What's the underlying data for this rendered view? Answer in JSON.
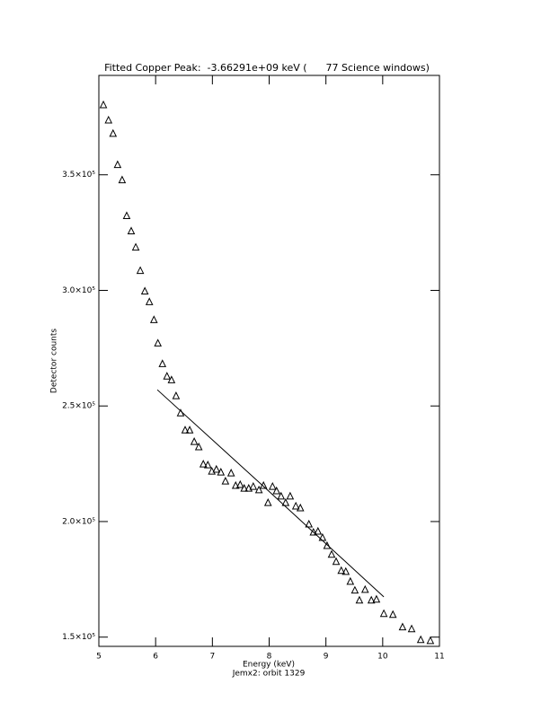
{
  "chart_data": {
    "type": "scatter",
    "title": "Fitted Copper Peak:  -3.66291e+09 keV (      77 Science windows)",
    "x_label": "Energy (keV)",
    "y_label": "Detector counts",
    "footnote": "Jemx2: orbit 1329",
    "xlim": [
      5,
      11
    ],
    "xticks": [
      5,
      6,
      7,
      8,
      9,
      10,
      11
    ],
    "ylim": [
      146000,
      393000
    ],
    "yticks": [
      {
        "value": 150000,
        "label": "1.5×10⁵"
      },
      {
        "value": 200000,
        "label": "2.0×10⁵"
      },
      {
        "value": 250000,
        "label": "2.5×10⁵"
      },
      {
        "value": 300000,
        "label": "3.0×10⁵"
      },
      {
        "value": 350000,
        "label": "3.5×10⁵"
      }
    ],
    "series": [
      {
        "type": "scatter",
        "marker": "triangle",
        "color": "#000000",
        "x": [
          5.08,
          5.17,
          5.25,
          5.33,
          5.41,
          5.49,
          5.57,
          5.65,
          5.73,
          5.81,
          5.89,
          5.97,
          6.04,
          6.12,
          6.2,
          6.28,
          6.36,
          6.44,
          6.52,
          6.6,
          6.68,
          6.76,
          6.84,
          6.92,
          6.99,
          7.07,
          7.15,
          7.23,
          7.33,
          7.41,
          7.49,
          7.56,
          7.64,
          7.72,
          7.82,
          7.9,
          7.98,
          8.06,
          8.13,
          8.21,
          8.29,
          8.37,
          8.47,
          8.55,
          8.7,
          8.78,
          8.86,
          8.94,
          9.02,
          9.1,
          9.18,
          9.27,
          9.35,
          9.43,
          9.51,
          9.59,
          9.69,
          9.8,
          9.89,
          10.02,
          10.18,
          10.35,
          10.51,
          10.67,
          10.84
        ],
        "values": [
          380200,
          373600,
          367800,
          354300,
          347700,
          332200,
          325600,
          318600,
          308500,
          299600,
          295000,
          287200,
          277100,
          268200,
          262800,
          261200,
          254300,
          246900,
          239500,
          239500,
          234500,
          232200,
          224800,
          224400,
          221700,
          222500,
          221300,
          217400,
          220900,
          215500,
          215900,
          214300,
          214300,
          215100,
          213600,
          215500,
          208100,
          215100,
          213200,
          210900,
          208100,
          210900,
          206600,
          205800,
          198800,
          195300,
          195700,
          193000,
          189500,
          185700,
          182600,
          178700,
          178300,
          174000,
          170200,
          165900,
          170500,
          165900,
          166300,
          160100,
          159700,
          154300,
          153500,
          148800,
          148400
        ]
      },
      {
        "type": "line",
        "color": "#000000",
        "x": [
          6.03,
          8.0,
          10.02
        ],
        "values": [
          257000,
          213000,
          167400
        ]
      }
    ]
  }
}
